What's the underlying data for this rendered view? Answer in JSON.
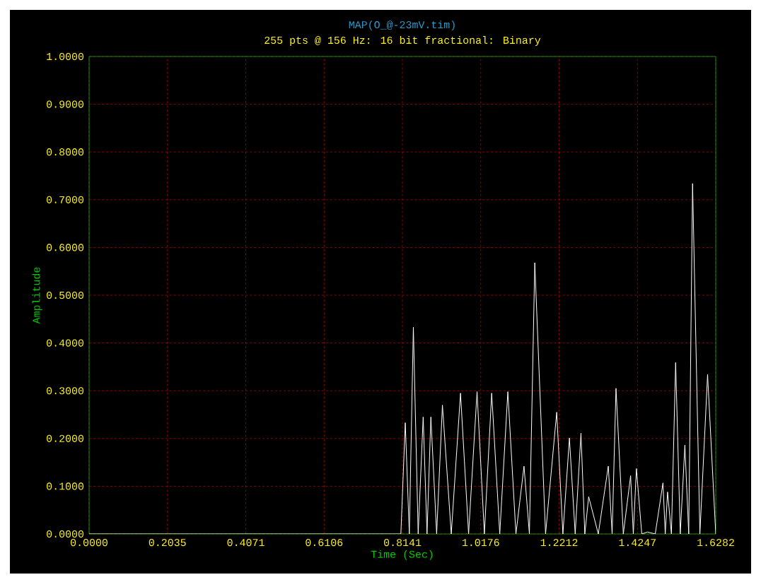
{
  "chart_data": {
    "type": "line",
    "title": "MAP(O_@-23mV.tim)",
    "subtitle": "255 pts @ 156 Hz: 16 bit fractional: Binary",
    "xlabel": "Time (Sec)",
    "ylabel": "Amplitude",
    "x": [
      0,
      0.81,
      0.8215,
      0.832,
      0.8425,
      0.855,
      0.868,
      0.878,
      0.888,
      0.903,
      0.918,
      0.941,
      0.965,
      0.986,
      1.008,
      1.027,
      1.046,
      1.067,
      1.088,
      1.109,
      1.13,
      1.144,
      1.158,
      1.186,
      1.215,
      1.231,
      1.248,
      1.263,
      1.278,
      1.288,
      1.298,
      1.323,
      1.349,
      1.359,
      1.369,
      1.388,
      1.407,
      1.414,
      1.422,
      1.436,
      1.451,
      1.471,
      1.491,
      1.497,
      1.503,
      1.513,
      1.524,
      1.536,
      1.548,
      1.558,
      1.568,
      1.587,
      1.607,
      1.6282
    ],
    "series": [
      {
        "color": "#ffffff",
        "values": [
          0,
          0,
          0.233,
          0,
          0.433,
          0,
          0.245,
          0,
          0.245,
          0,
          0.27,
          0,
          0.295,
          0,
          0.298,
          0,
          0.295,
          0,
          0.298,
          0,
          0.142,
          0,
          0.568,
          0,
          0.255,
          0,
          0.201,
          0,
          0.211,
          0,
          0.078,
          0,
          0.142,
          0,
          0.305,
          0,
          0.122,
          0,
          0.137,
          0,
          0.004,
          0,
          0.107,
          0,
          0.088,
          0,
          0.359,
          0,
          0.186,
          0,
          0.734,
          0,
          0.334,
          0
        ]
      }
    ],
    "xlim": [
      0,
      1.6282
    ],
    "ylim": [
      0,
      1
    ],
    "xticks": [
      {
        "value": 0,
        "label": "0.0000"
      },
      0.2035,
      0.4071,
      0.6106,
      0.8141,
      1.0176,
      1.2212,
      1.4247,
      1.6282
    ],
    "yticks": [
      {
        "value": 0,
        "label": "0.0000"
      },
      {
        "value": 0.1,
        "label": "0.1000"
      },
      {
        "value": 0.2,
        "label": "0.2000"
      },
      {
        "value": 0.3,
        "label": "0.3000"
      },
      {
        "value": 0.4,
        "label": "0.4000"
      },
      {
        "value": 0.5,
        "label": "0.5000"
      },
      {
        "value": 0.6,
        "label": "0.6000"
      },
      {
        "value": 0.7,
        "label": "0.7000"
      },
      {
        "value": 0.8,
        "label": "0.8000"
      },
      {
        "value": 0.9,
        "label": "0.9000"
      },
      {
        "value": 1,
        "label": "1.0000"
      }
    ],
    "grid": true
  }
}
